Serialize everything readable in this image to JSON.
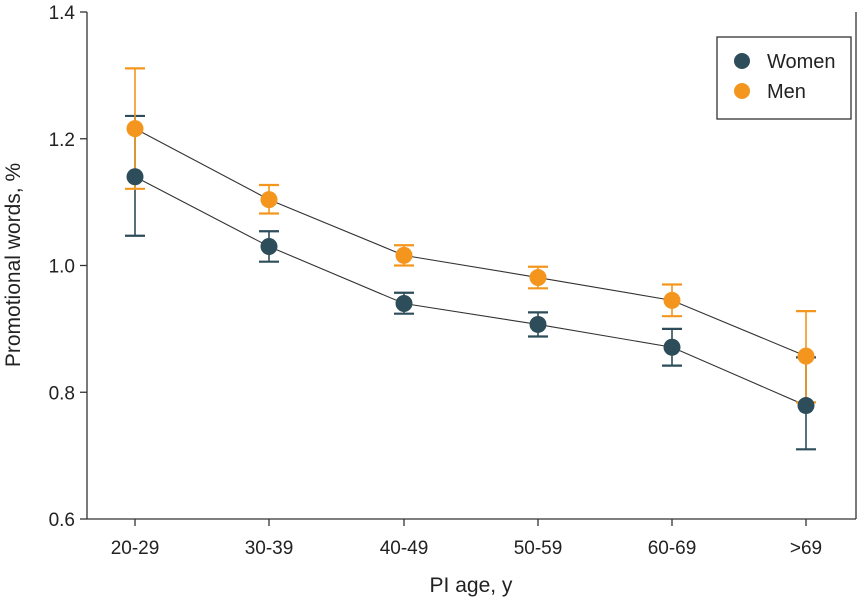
{
  "chart_data": {
    "type": "line",
    "title": "",
    "xlabel": "PI age, y",
    "ylabel": "Promotional words, %",
    "categories": [
      "20-29",
      "30-39",
      "40-49",
      "50-59",
      "60-69",
      ">69"
    ],
    "ylim": [
      0.6,
      1.4
    ],
    "yticks": [
      "0.6",
      "0.8",
      "1.0",
      "1.2",
      "1.4"
    ],
    "grid": false,
    "legend_position": "top-right",
    "series": [
      {
        "name": "Women",
        "color": "#2d4d5a",
        "values": [
          1.14,
          1.03,
          0.94,
          0.907,
          0.871,
          0.779
        ],
        "error_low": [
          1.047,
          1.006,
          0.924,
          0.888,
          0.842,
          0.71
        ],
        "error_high": [
          1.236,
          1.054,
          0.957,
          0.926,
          0.9,
          0.855
        ]
      },
      {
        "name": "Men",
        "color": "#f4961e",
        "values": [
          1.216,
          1.104,
          1.016,
          0.981,
          0.945,
          0.857
        ],
        "error_low": [
          1.121,
          1.082,
          1.0,
          0.964,
          0.92,
          0.784
        ],
        "error_high": [
          1.311,
          1.127,
          1.032,
          0.998,
          0.97,
          0.928
        ]
      }
    ]
  }
}
